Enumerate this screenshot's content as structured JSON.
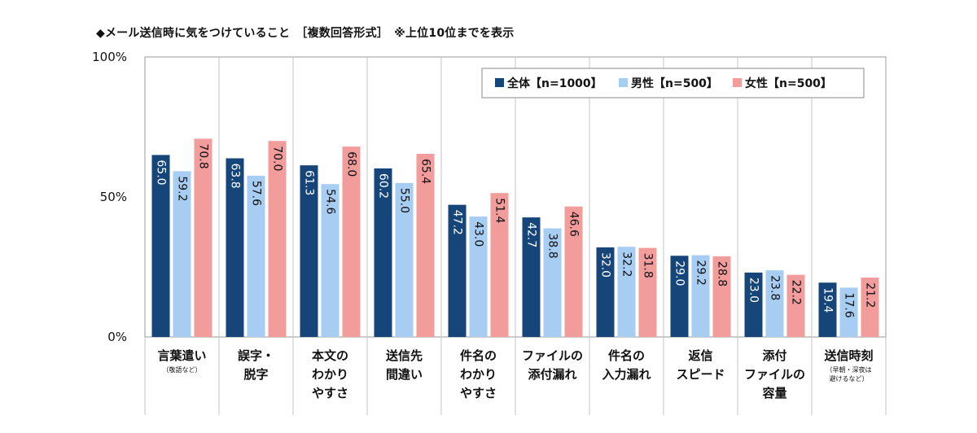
{
  "title": "◆メール送信時に気をつけていること　［複数回答形式］　※上位10位までを表示",
  "colors": {
    "all": "#16457a",
    "male": "#a7cdf2",
    "female": "#f29c9c"
  },
  "chart_data": {
    "type": "bar",
    "title": "◆メール送信時に気をつけていること　［複数回答形式］　※上位10位までを表示",
    "ylim": [
      0,
      100
    ],
    "yticks": [
      "0%",
      "50%",
      "100%"
    ],
    "grid": false,
    "legend": "top-right",
    "categories": [
      {
        "lines": [
          "言葉遣い"
        ],
        "note": [
          "（敬語など）"
        ]
      },
      {
        "lines": [
          "誤字・",
          "脱字"
        ]
      },
      {
        "lines": [
          "本文の",
          "わかり",
          "やすさ"
        ]
      },
      {
        "lines": [
          "送信先",
          "間違い"
        ]
      },
      {
        "lines": [
          "件名の",
          "わかり",
          "やすさ"
        ]
      },
      {
        "lines": [
          "ファイルの",
          "添付漏れ"
        ]
      },
      {
        "lines": [
          "件名の",
          "入力漏れ"
        ]
      },
      {
        "lines": [
          "返信",
          "スピード"
        ]
      },
      {
        "lines": [
          "添付",
          "ファイルの",
          "容量"
        ]
      },
      {
        "lines": [
          "送信時刻"
        ],
        "note": [
          "（早朝・深夜は",
          "避けるなど）"
        ]
      }
    ],
    "series": [
      {
        "name": "全体【n=1000】",
        "values": [
          65.0,
          63.8,
          61.3,
          60.2,
          47.2,
          42.7,
          32.0,
          29.0,
          23.0,
          19.4
        ]
      },
      {
        "name": "男性【n=500】",
        "values": [
          59.2,
          57.6,
          54.6,
          55.0,
          43.0,
          38.8,
          32.2,
          29.2,
          23.8,
          17.6
        ]
      },
      {
        "name": "女性【n=500】",
        "values": [
          70.8,
          70.0,
          68.0,
          65.4,
          51.4,
          46.6,
          31.8,
          28.8,
          22.2,
          21.2
        ]
      }
    ]
  }
}
